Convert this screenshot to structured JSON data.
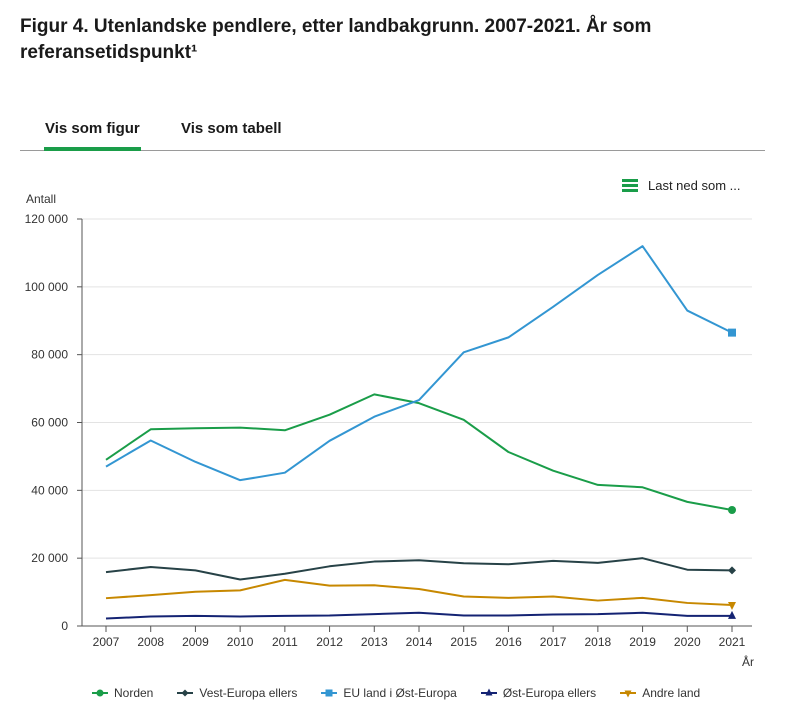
{
  "page": {
    "title": "Figur 4. Utenlandske pendlere, etter landbakgrunn. 2007-2021. År som referansetidspunkt¹"
  },
  "tabs": [
    {
      "label": "Vis som figur",
      "active": true
    },
    {
      "label": "Vis som tabell",
      "active": false
    }
  ],
  "download": {
    "label": "Last ned som ...",
    "icon": "menu-icon"
  },
  "chart_data": {
    "type": "line",
    "title": "Figur 4. Utenlandske pendlere, etter landbakgrunn. 2007-2021. År som referansetidspunkt¹",
    "xlabel": "År",
    "ylabel": "Antall",
    "ylim": [
      0,
      120000
    ],
    "yticks": [
      0,
      20000,
      40000,
      60000,
      80000,
      100000,
      120000
    ],
    "ytick_labels": [
      "0",
      "20 000",
      "40 000",
      "60 000",
      "80 000",
      "100 000",
      "120 000"
    ],
    "categories": [
      "2007",
      "2008",
      "2009",
      "2010",
      "2011",
      "2012",
      "2013",
      "2014",
      "2015",
      "2016",
      "2017",
      "2018",
      "2019",
      "2020",
      "2021"
    ],
    "grid": true,
    "legend_position": "bottom",
    "series": [
      {
        "name": "Norden",
        "color": "#1a9d49",
        "marker": "circle",
        "values": [
          49000,
          58000,
          58300,
          58500,
          57700,
          62300,
          68300,
          65700,
          60800,
          51300,
          45800,
          41600,
          40900,
          36600,
          34200
        ]
      },
      {
        "name": "Vest-Europa ellers",
        "color": "#274247",
        "marker": "diamond",
        "values": [
          15900,
          17400,
          16400,
          13700,
          15400,
          17600,
          19000,
          19400,
          18500,
          18200,
          19200,
          18600,
          20000,
          16600,
          16400
        ]
      },
      {
        "name": "EU land i Øst-Europa",
        "color": "#3396d2",
        "marker": "square",
        "values": [
          47000,
          54700,
          48400,
          43000,
          45200,
          54600,
          61700,
          66600,
          80700,
          85100,
          94100,
          103500,
          112000,
          93000,
          86500
        ]
      },
      {
        "name": "Øst-Europa ellers",
        "color": "#142373",
        "marker": "triangle",
        "values": [
          2200,
          2800,
          3000,
          2800,
          3000,
          3100,
          3500,
          3900,
          3100,
          3100,
          3400,
          3500,
          3900,
          3000,
          3000
        ]
      },
      {
        "name": "Andre land",
        "color": "#c78800",
        "marker": "triangle-down",
        "values": [
          8200,
          9100,
          10100,
          10500,
          13600,
          11900,
          12000,
          10900,
          8700,
          8300,
          8700,
          7500,
          8300,
          6800,
          6200
        ]
      }
    ]
  }
}
